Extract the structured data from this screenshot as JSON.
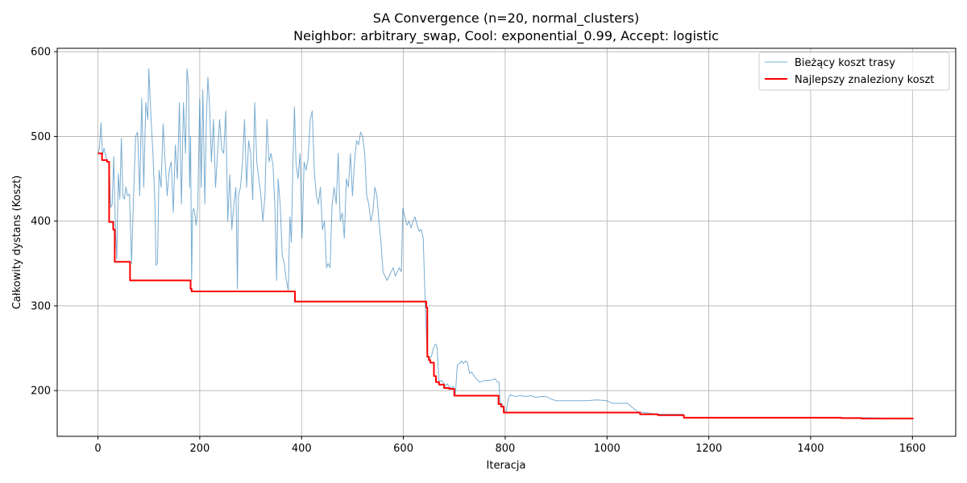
{
  "chart_data": {
    "type": "line",
    "title": "SA Convergence (n=20, normal_clusters)",
    "subtitle": "Neighbor: arbitrary_swap, Cool: exponential_0.99, Accept: logistic",
    "xlabel": "Iteracja",
    "ylabel": "Całkowity dystans (Koszt)",
    "xlim": [
      -80,
      1685
    ],
    "ylim": [
      146,
      604
    ],
    "xticks": [
      0,
      200,
      400,
      600,
      800,
      1000,
      1200,
      1400,
      1600
    ],
    "yticks": [
      200,
      300,
      400,
      500,
      600
    ],
    "grid": true,
    "legend_position": "top-right",
    "series": [
      {
        "name": "Bieżący koszt trasy",
        "color": "#1f77b4",
        "opacity": 0.6,
        "stroke_width": 1,
        "points": [
          [
            0,
            480
          ],
          [
            3,
            486
          ],
          [
            6,
            516
          ],
          [
            9,
            478
          ],
          [
            12,
            486
          ],
          [
            15,
            478
          ],
          [
            18,
            470
          ],
          [
            22,
            470
          ],
          [
            25,
            416
          ],
          [
            28,
            420
          ],
          [
            31,
            476
          ],
          [
            34,
            400
          ],
          [
            37,
            355
          ],
          [
            40,
            456
          ],
          [
            43,
            426
          ],
          [
            46,
            498
          ],
          [
            49,
            430
          ],
          [
            52,
            426
          ],
          [
            55,
            440
          ],
          [
            58,
            430
          ],
          [
            62,
            432
          ],
          [
            66,
            350
          ],
          [
            70,
            430
          ],
          [
            74,
            500
          ],
          [
            78,
            505
          ],
          [
            82,
            430
          ],
          [
            86,
            545
          ],
          [
            90,
            440
          ],
          [
            94,
            540
          ],
          [
            98,
            520
          ],
          [
            100,
            580
          ],
          [
            104,
            525
          ],
          [
            108,
            480
          ],
          [
            112,
            420
          ],
          [
            114,
            348
          ],
          [
            117,
            350
          ],
          [
            120,
            460
          ],
          [
            124,
            440
          ],
          [
            128,
            515
          ],
          [
            132,
            470
          ],
          [
            136,
            430
          ],
          [
            140,
            460
          ],
          [
            144,
            470
          ],
          [
            148,
            410
          ],
          [
            152,
            490
          ],
          [
            156,
            450
          ],
          [
            160,
            540
          ],
          [
            164,
            420
          ],
          [
            168,
            540
          ],
          [
            172,
            480
          ],
          [
            175,
            580
          ],
          [
            178,
            560
          ],
          [
            180,
            440
          ],
          [
            182,
            500
          ],
          [
            184,
            330
          ],
          [
            186,
            410
          ],
          [
            188,
            415
          ],
          [
            190,
            410
          ],
          [
            193,
            395
          ],
          [
            196,
            415
          ],
          [
            200,
            545
          ],
          [
            203,
            440
          ],
          [
            206,
            555
          ],
          [
            210,
            420
          ],
          [
            213,
            520
          ],
          [
            216,
            570
          ],
          [
            219,
            540
          ],
          [
            223,
            470
          ],
          [
            227,
            520
          ],
          [
            231,
            440
          ],
          [
            235,
            480
          ],
          [
            239,
            520
          ],
          [
            243,
            485
          ],
          [
            247,
            480
          ],
          [
            251,
            530
          ],
          [
            255,
            400
          ],
          [
            259,
            455
          ],
          [
            263,
            390
          ],
          [
            267,
            420
          ],
          [
            271,
            440
          ],
          [
            274,
            320
          ],
          [
            276,
            430
          ],
          [
            280,
            440
          ],
          [
            284,
            470
          ],
          [
            288,
            520
          ],
          [
            292,
            440
          ],
          [
            296,
            495
          ],
          [
            300,
            480
          ],
          [
            304,
            425
          ],
          [
            308,
            540
          ],
          [
            312,
            470
          ],
          [
            316,
            450
          ],
          [
            320,
            430
          ],
          [
            324,
            400
          ],
          [
            328,
            430
          ],
          [
            332,
            520
          ],
          [
            336,
            470
          ],
          [
            340,
            480
          ],
          [
            344,
            465
          ],
          [
            348,
            410
          ],
          [
            351,
            330
          ],
          [
            354,
            450
          ],
          [
            358,
            420
          ],
          [
            362,
            360
          ],
          [
            366,
            350
          ],
          [
            370,
            330
          ],
          [
            374,
            318
          ],
          [
            377,
            405
          ],
          [
            380,
            375
          ],
          [
            383,
            470
          ],
          [
            386,
            535
          ],
          [
            389,
            470
          ],
          [
            393,
            450
          ],
          [
            397,
            480
          ],
          [
            401,
            380
          ],
          [
            405,
            470
          ],
          [
            409,
            460
          ],
          [
            413,
            475
          ],
          [
            417,
            520
          ],
          [
            421,
            530
          ],
          [
            425,
            460
          ],
          [
            429,
            430
          ],
          [
            433,
            420
          ],
          [
            437,
            440
          ],
          [
            441,
            390
          ],
          [
            445,
            400
          ],
          [
            449,
            345
          ],
          [
            452,
            350
          ],
          [
            456,
            345
          ],
          [
            460,
            420
          ],
          [
            464,
            440
          ],
          [
            468,
            420
          ],
          [
            472,
            480
          ],
          [
            476,
            400
          ],
          [
            480,
            410
          ],
          [
            484,
            380
          ],
          [
            488,
            450
          ],
          [
            492,
            440
          ],
          [
            496,
            480
          ],
          [
            500,
            430
          ],
          [
            504,
            470
          ],
          [
            508,
            495
          ],
          [
            512,
            490
          ],
          [
            516,
            505
          ],
          [
            520,
            500
          ],
          [
            524,
            480
          ],
          [
            528,
            430
          ],
          [
            532,
            420
          ],
          [
            536,
            400
          ],
          [
            540,
            410
          ],
          [
            544,
            440
          ],
          [
            548,
            430
          ],
          [
            552,
            400
          ],
          [
            556,
            375
          ],
          [
            560,
            340
          ],
          [
            564,
            335
          ],
          [
            568,
            330
          ],
          [
            572,
            335
          ],
          [
            576,
            340
          ],
          [
            580,
            345
          ],
          [
            584,
            335
          ],
          [
            588,
            340
          ],
          [
            592,
            345
          ],
          [
            596,
            340
          ],
          [
            599,
            415
          ],
          [
            603,
            405
          ],
          [
            607,
            395
          ],
          [
            611,
            400
          ],
          [
            615,
            392
          ],
          [
            619,
            400
          ],
          [
            623,
            405
          ],
          [
            627,
            395
          ],
          [
            631,
            388
          ],
          [
            635,
            390
          ],
          [
            639,
            380
          ],
          [
            643,
            300
          ],
          [
            647,
            240
          ],
          [
            651,
            238
          ],
          [
            655,
            240
          ],
          [
            659,
            250
          ],
          [
            663,
            255
          ],
          [
            666,
            252
          ],
          [
            670,
            210
          ],
          [
            674,
            212
          ],
          [
            678,
            210
          ],
          [
            682,
            205
          ],
          [
            686,
            208
          ],
          [
            690,
            205
          ],
          [
            694,
            203
          ],
          [
            698,
            205
          ],
          [
            702,
            195
          ],
          [
            706,
            230
          ],
          [
            710,
            232
          ],
          [
            714,
            235
          ],
          [
            718,
            232
          ],
          [
            722,
            235
          ],
          [
            726,
            233
          ],
          [
            730,
            220
          ],
          [
            734,
            222
          ],
          [
            738,
            218
          ],
          [
            742,
            215
          ],
          [
            746,
            212
          ],
          [
            750,
            210
          ],
          [
            760,
            212
          ],
          [
            770,
            212
          ],
          [
            780,
            214
          ],
          [
            785,
            210
          ],
          [
            788,
            210
          ],
          [
            790,
            185
          ],
          [
            793,
            185
          ],
          [
            796,
            182
          ],
          [
            799,
            176
          ],
          [
            802,
            174
          ],
          [
            806,
            190
          ],
          [
            810,
            195
          ],
          [
            820,
            193
          ],
          [
            830,
            194
          ],
          [
            840,
            193
          ],
          [
            850,
            194
          ],
          [
            860,
            192
          ],
          [
            870,
            193
          ],
          [
            880,
            193
          ],
          [
            890,
            190
          ],
          [
            900,
            188
          ],
          [
            920,
            188
          ],
          [
            940,
            188
          ],
          [
            960,
            188
          ],
          [
            980,
            189
          ],
          [
            1000,
            188
          ],
          [
            1010,
            185
          ],
          [
            1040,
            185
          ],
          [
            1050,
            180
          ],
          [
            1060,
            175
          ],
          [
            1100,
            172
          ],
          [
            1150,
            172
          ],
          [
            1152,
            168
          ],
          [
            1200,
            168
          ],
          [
            1300,
            168
          ],
          [
            1400,
            168
          ],
          [
            1500,
            168
          ],
          [
            1602,
            167
          ]
        ]
      },
      {
        "name": "Najlepszy znaleziony koszt",
        "color": "#ff0000",
        "opacity": 1,
        "stroke_width": 2,
        "points": [
          [
            0,
            480
          ],
          [
            8,
            480
          ],
          [
            8,
            472
          ],
          [
            18,
            472
          ],
          [
            18,
            470
          ],
          [
            22,
            470
          ],
          [
            22,
            399
          ],
          [
            30,
            399
          ],
          [
            30,
            390
          ],
          [
            33,
            390
          ],
          [
            33,
            352
          ],
          [
            63,
            352
          ],
          [
            63,
            330
          ],
          [
            182,
            330
          ],
          [
            182,
            320
          ],
          [
            184,
            320
          ],
          [
            184,
            317
          ],
          [
            387,
            317
          ],
          [
            387,
            305
          ],
          [
            645,
            305
          ],
          [
            645,
            298
          ],
          [
            647,
            298
          ],
          [
            647,
            240
          ],
          [
            650,
            240
          ],
          [
            650,
            236
          ],
          [
            653,
            236
          ],
          [
            653,
            233
          ],
          [
            660,
            233
          ],
          [
            660,
            217
          ],
          [
            664,
            217
          ],
          [
            664,
            210
          ],
          [
            670,
            210
          ],
          [
            670,
            207
          ],
          [
            680,
            207
          ],
          [
            680,
            203
          ],
          [
            690,
            203
          ],
          [
            690,
            202
          ],
          [
            700,
            202
          ],
          [
            700,
            194
          ],
          [
            787,
            194
          ],
          [
            787,
            184
          ],
          [
            792,
            184
          ],
          [
            792,
            181
          ],
          [
            797,
            181
          ],
          [
            797,
            174
          ],
          [
            1065,
            174
          ],
          [
            1065,
            172
          ],
          [
            1100,
            172
          ],
          [
            1100,
            171
          ],
          [
            1151,
            171
          ],
          [
            1151,
            168
          ],
          [
            1460,
            168
          ],
          [
            1460,
            167.5
          ],
          [
            1500,
            167.5
          ],
          [
            1500,
            167
          ],
          [
            1602,
            167
          ]
        ]
      }
    ]
  }
}
